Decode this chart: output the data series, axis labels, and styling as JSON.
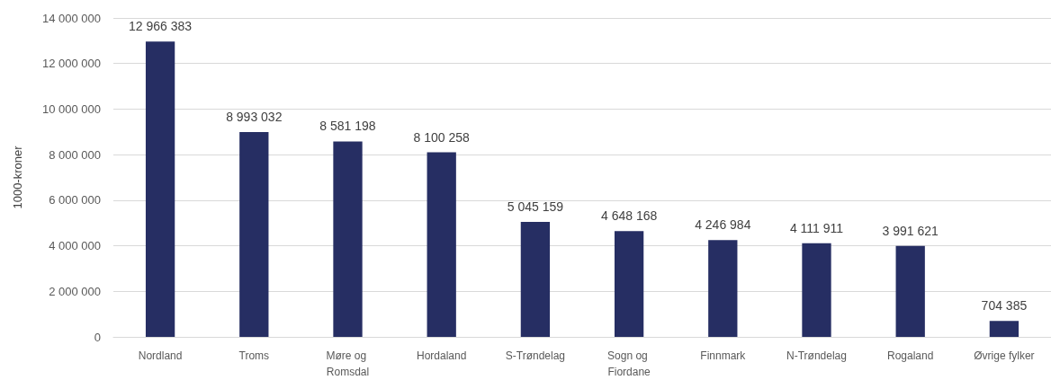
{
  "chart_data": {
    "type": "bar",
    "ylabel": "1000-kroner",
    "categories": [
      "Nordland",
      "Troms",
      "Møre og Romsdal",
      "Hordaland",
      "S-Trøndelag",
      "Sogn og Fiordane",
      "Finnmark",
      "N-Trøndelag",
      "Rogaland",
      "Øvrige fylker"
    ],
    "values": [
      12966383,
      8993032,
      8581198,
      8100258,
      5045159,
      4648168,
      4246984,
      4111911,
      3991621,
      704385
    ],
    "value_labels": [
      "12 966 383",
      "8 993 032",
      "8 581 198",
      "8 100 258",
      "5 045 159",
      "4 648 168",
      "4 246 984",
      "4 111 911",
      "3 991 621",
      "704 385"
    ],
    "color": "#262e63",
    "ylim": [
      0,
      14000000
    ],
    "yticks": [
      {
        "value": 0,
        "label": "0"
      },
      {
        "value": 2000000,
        "label": "2 000 000"
      },
      {
        "value": 4000000,
        "label": "4 000 000"
      },
      {
        "value": 6000000,
        "label": "6 000 000"
      },
      {
        "value": 8000000,
        "label": "8 000 000"
      },
      {
        "value": 10000000,
        "label": "10 000 000"
      },
      {
        "value": 12000000,
        "label": "12 000 000"
      },
      {
        "value": 14000000,
        "label": "14 000 000"
      }
    ],
    "grid": "y"
  }
}
